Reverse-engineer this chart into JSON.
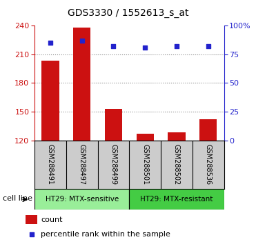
{
  "title": "GDS3330 / 1552613_s_at",
  "samples": [
    "GSM288491",
    "GSM288497",
    "GSM288499",
    "GSM288501",
    "GSM288502",
    "GSM288536"
  ],
  "counts": [
    203,
    238,
    153,
    127,
    128,
    142
  ],
  "percentiles": [
    85,
    87,
    82,
    81,
    82,
    82
  ],
  "ylim_left": [
    120,
    240
  ],
  "ylim_right": [
    0,
    100
  ],
  "yticks_left": [
    120,
    150,
    180,
    210,
    240
  ],
  "yticks_right": [
    0,
    25,
    50,
    75,
    100
  ],
  "bar_color": "#cc1111",
  "scatter_color": "#2222cc",
  "bar_width": 0.55,
  "grid_color": "#888888",
  "cell_line_groups": [
    {
      "label": "HT29: MTX-sensitive",
      "start": 0,
      "end": 3,
      "color": "#99ee99"
    },
    {
      "label": "HT29: MTX-resistant",
      "start": 3,
      "end": 6,
      "color": "#44cc44"
    }
  ],
  "cell_line_label": "cell line",
  "legend_count_label": "count",
  "legend_percentile_label": "percentile rank within the sample",
  "sample_bg_color": "#cccccc",
  "plot_bg_color": "#ffffff",
  "fig_bg_color": "#ffffff"
}
